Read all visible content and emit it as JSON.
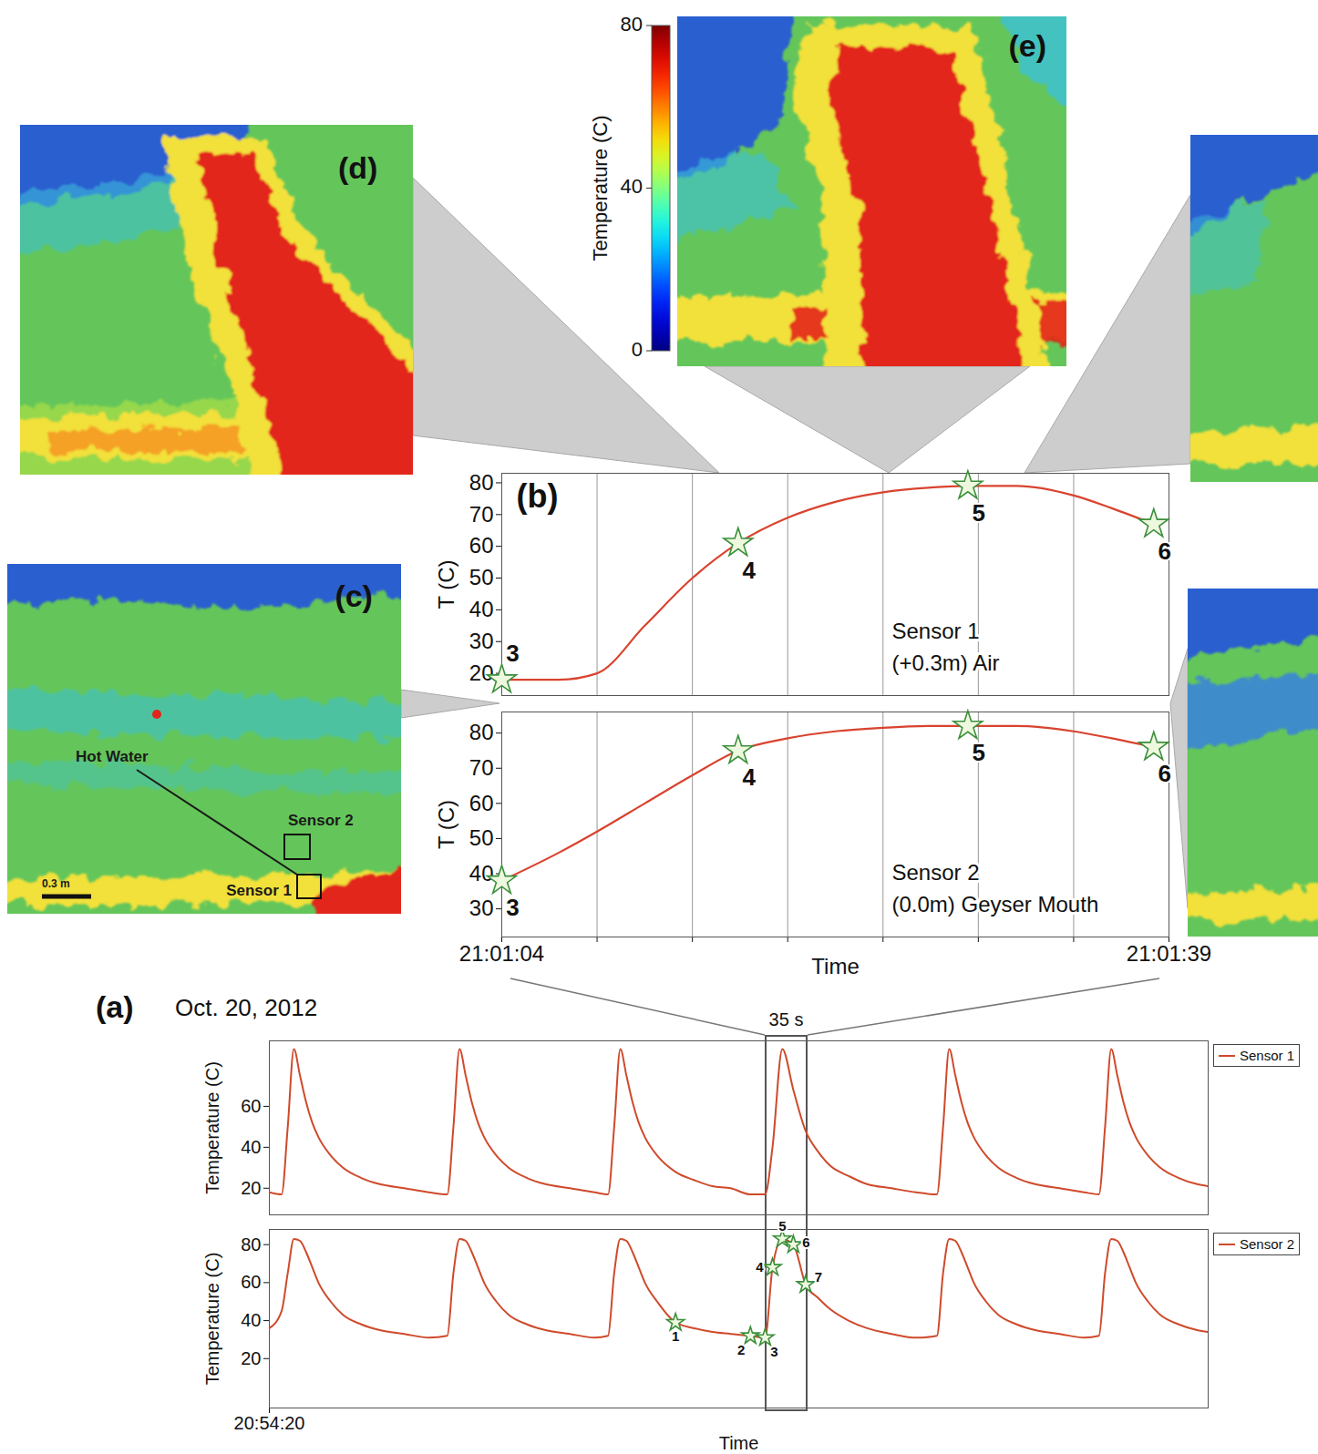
{
  "images": {
    "panels": [
      {
        "label": "(d)"
      },
      {
        "label": "(e)"
      },
      {
        "label": "(c)",
        "annotations": [
          "Hot Water",
          "Sensor 2",
          "Sensor 1"
        ],
        "scale_bar": "0.3 m"
      }
    ],
    "colorbar": {
      "title": "Temperature (C)",
      "range": [
        0,
        80
      ],
      "ticks": [
        0,
        40,
        80
      ]
    }
  },
  "chart_data": [
    {
      "type": "line",
      "panel_label": "(b)",
      "ylabel": "T (C)",
      "annotations": [
        "Sensor 1",
        "(+0.3m) Air"
      ],
      "x": [
        0,
        3,
        5,
        7.5,
        10,
        12.4,
        15,
        17.5,
        20,
        22.5,
        24.45,
        27,
        30,
        32,
        34.2
      ],
      "values": [
        18,
        18,
        20,
        35,
        50,
        61,
        69,
        74,
        77,
        78.5,
        79,
        79,
        76,
        72,
        67
      ],
      "color": "#d9432f",
      "markers": {
        "x": [
          0,
          12.4,
          24.45,
          34.2
        ],
        "values": [
          18,
          61,
          79,
          67
        ],
        "labels": [
          "3",
          "4",
          "5",
          "6"
        ]
      },
      "marker": "star",
      "xlim": [
        0,
        35
      ],
      "xticks": [
        0,
        5,
        10,
        15,
        20,
        25,
        30,
        35
      ],
      "ylim": [
        13,
        83
      ],
      "yticks": [
        20,
        30,
        40,
        50,
        60,
        70,
        80
      ],
      "grid": true,
      "tick_labels": "y"
    },
    {
      "type": "line",
      "ylabel": "T (C)",
      "xlabel": "Time",
      "annotations": [
        "Sensor 2",
        "(0.0m) Geyser Mouth"
      ],
      "x": [
        0,
        3,
        5,
        7.5,
        10,
        12.4,
        15,
        17.5,
        20,
        22.5,
        24.45,
        27,
        30,
        32,
        34.2
      ],
      "values": [
        38,
        46,
        52,
        60,
        68,
        75,
        78.5,
        80.5,
        81.5,
        82,
        82,
        82,
        80.5,
        78.5,
        76
      ],
      "color": "#d9432f",
      "markers": {
        "x": [
          0,
          12.4,
          24.45,
          34.2
        ],
        "values": [
          38,
          75,
          82,
          76
        ],
        "labels": [
          "3",
          "4",
          "5",
          "6"
        ]
      },
      "marker": "star",
      "xlim": [
        0,
        35
      ],
      "xticks": [
        {
          "value": 0,
          "label": "21:01:04"
        },
        {
          "value": 5,
          "label": null
        },
        {
          "value": 10,
          "label": null
        },
        {
          "value": 15,
          "label": null
        },
        {
          "value": 20,
          "label": null
        },
        {
          "value": 25,
          "label": null
        },
        {
          "value": 30,
          "label": null
        },
        {
          "value": 35,
          "label": "21:01:39"
        }
      ],
      "ylim": [
        22,
        86
      ],
      "yticks": [
        30,
        40,
        50,
        60,
        70,
        80
      ],
      "grid": true
    },
    {
      "type": "line",
      "panel_label": "(a)",
      "title": "Oct. 20, 2012",
      "ylabel": "Temperature (C)",
      "x": [
        0,
        10,
        15,
        20,
        25,
        30,
        35,
        40,
        50,
        60,
        75,
        90,
        110,
        130,
        145,
        150,
        155,
        160,
        165,
        170,
        175,
        185,
        195,
        210,
        225,
        245,
        265,
        276,
        281,
        286,
        291,
        296,
        301,
        306,
        316,
        331,
        346,
        361,
        376,
        392,
        404,
        410,
        418,
        427,
        437,
        447,
        457,
        472,
        487,
        507,
        527,
        544,
        549,
        554,
        559,
        564,
        569,
        574,
        584,
        594,
        609,
        624,
        644,
        664,
        676,
        681,
        686,
        691,
        696,
        701,
        706,
        716,
        726,
        741,
        756,
        765
      ],
      "series": [
        {
          "name": "Sensor 1",
          "color": "#cf4a2b",
          "values": [
            18,
            17,
            50,
            88,
            75,
            62,
            52,
            45,
            36,
            30,
            25,
            22,
            20,
            18,
            17,
            50,
            88,
            75,
            62,
            52,
            45,
            36,
            30,
            25,
            22,
            20,
            18,
            17,
            50,
            88,
            75,
            62,
            52,
            45,
            36,
            28,
            24,
            21,
            20,
            17,
            17,
            40,
            88,
            68,
            48,
            38,
            31,
            26,
            22,
            20,
            18,
            17,
            50,
            88,
            75,
            62,
            52,
            45,
            36,
            30,
            25,
            22,
            20,
            18,
            17,
            50,
            88,
            75,
            62,
            52,
            45,
            36,
            30,
            25,
            22,
            21
          ]
        }
      ],
      "box": {
        "x": [
          404,
          439
        ],
        "label": "35 s"
      },
      "xlim": [
        0,
        765
      ],
      "ylim": [
        7,
        92
      ],
      "yticks": [
        20,
        40,
        60
      ],
      "legend": "right",
      "tick_labels": "y"
    },
    {
      "type": "line",
      "ylabel": "Temperature (C)",
      "xlabel": "Time",
      "x": [
        0,
        10,
        15,
        20,
        25,
        30,
        35,
        40,
        50,
        60,
        75,
        90,
        110,
        130,
        145,
        150,
        155,
        160,
        165,
        170,
        175,
        185,
        195,
        210,
        225,
        245,
        265,
        276,
        281,
        286,
        291,
        296,
        301,
        306,
        316,
        331,
        346,
        361,
        376,
        392,
        404,
        410,
        418,
        427,
        437,
        447,
        457,
        472,
        487,
        507,
        527,
        544,
        549,
        554,
        559,
        564,
        569,
        574,
        584,
        594,
        609,
        624,
        644,
        664,
        676,
        681,
        686,
        691,
        696,
        701,
        706,
        716,
        726,
        741,
        756,
        765
      ],
      "series": [
        {
          "name": "Sensor 2",
          "color": "#cf4a2b",
          "values": [
            36,
            45,
            65,
            83,
            82,
            76,
            68,
            60,
            50,
            43,
            38,
            35,
            33,
            31,
            32,
            65,
            83,
            82,
            76,
            68,
            60,
            50,
            43,
            38,
            35,
            33,
            31,
            32,
            65,
            83,
            82,
            76,
            68,
            60,
            50,
            39,
            36,
            34,
            33,
            32,
            31,
            68,
            83,
            80,
            59,
            52,
            46,
            40,
            36,
            33,
            31,
            32,
            65,
            83,
            82,
            76,
            68,
            60,
            50,
            43,
            38,
            35,
            33,
            31,
            32,
            65,
            83,
            82,
            76,
            68,
            60,
            50,
            43,
            38,
            35,
            34
          ]
        }
      ],
      "markers": {
        "x": [
          331,
          392,
          404,
          410,
          418,
          427,
          437
        ],
        "values": [
          39,
          32,
          31,
          68,
          83,
          80,
          59
        ],
        "labels": [
          "1",
          "2",
          "3",
          "4",
          "5",
          "6",
          "7"
        ]
      },
      "marker": "star",
      "xlim": [
        0,
        765
      ],
      "xticks": [
        {
          "value": 0,
          "label": "20:54:20"
        }
      ],
      "ylim": [
        -6,
        88
      ],
      "yticks": [
        20,
        40,
        60,
        80
      ],
      "legend": "right"
    }
  ]
}
